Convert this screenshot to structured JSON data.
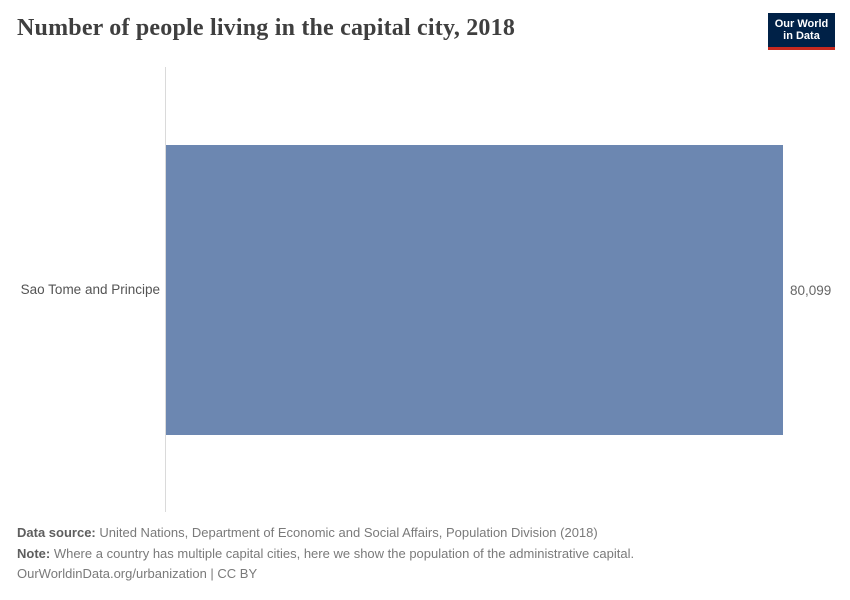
{
  "header": {
    "title": "Number of people living in the capital city, 2018",
    "logo": {
      "line1": "Our World",
      "line2": "in Data",
      "bg_color": "#002147",
      "underline_color": "#c7291f"
    }
  },
  "chart_data": {
    "type": "bar",
    "orientation": "horizontal",
    "title": "Number of people living in the capital city, 2018",
    "categories": [
      "Sao Tome and Principe"
    ],
    "values": [
      80099
    ],
    "value_labels": [
      "80,099"
    ],
    "xlim": [
      0,
      80099
    ],
    "grid": false,
    "legend": "none",
    "bar_color": "#6c87b1"
  },
  "footer": {
    "data_source_label": "Data source:",
    "data_source_text": " United Nations, Department of Economic and Social Affairs, Population Division (2018)",
    "note_label": "Note:",
    "note_text": " Where a country has multiple capital cities, here we show the population of the administrative capital.",
    "attribution": "OurWorldinData.org/urbanization | CC BY"
  }
}
